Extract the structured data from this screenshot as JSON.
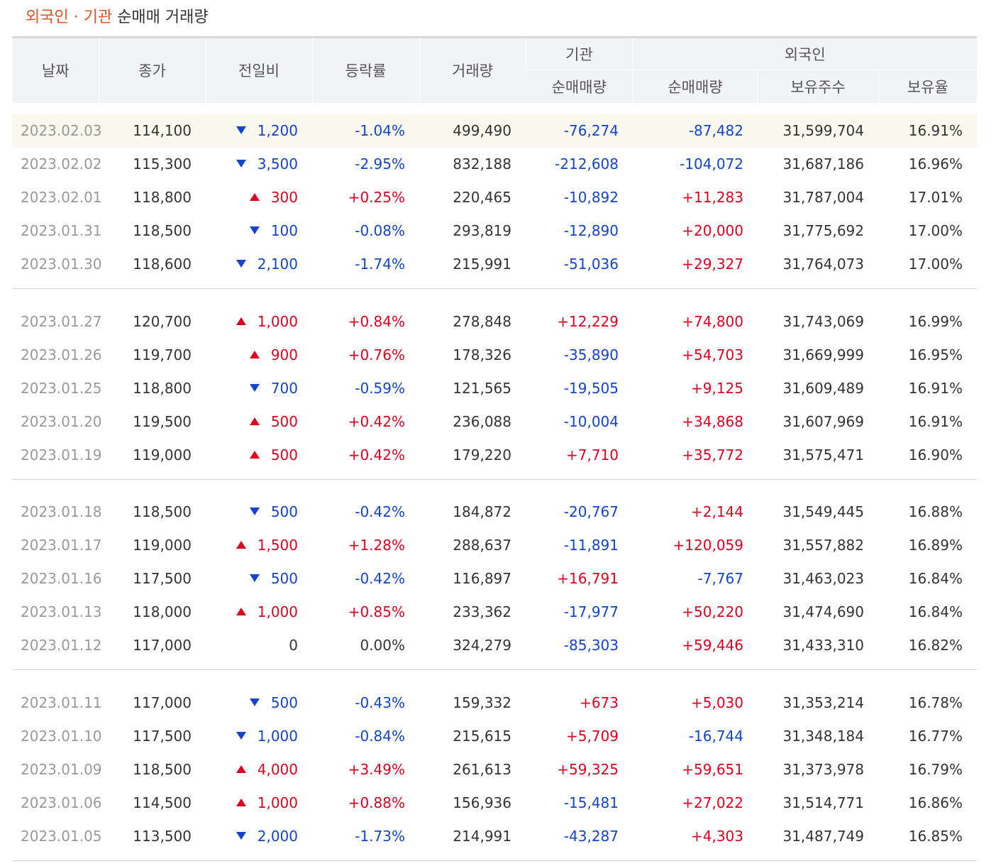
{
  "header": {
    "title_highlight": "외국인 · 기관",
    "title_rest": "순매매 거래량"
  },
  "columns": {
    "date": "날짜",
    "close": "종가",
    "change": "전일비",
    "rate": "등락률",
    "volume": "거래량",
    "inst_group": "기관",
    "foreign_group": "외국인",
    "inst_net": "순매매량",
    "foreign_net": "순매매량",
    "foreign_shares": "보유주수",
    "foreign_ratio": "보유율"
  },
  "colors": {
    "up": "#e0001f",
    "down": "#1244cc",
    "accent": "#e8521f"
  },
  "groups": [
    [
      {
        "date": "2023.02.03",
        "close": "114,100",
        "dir": "down",
        "change": "1,200",
        "rate": "-1.04%",
        "volume": "499,490",
        "inst": "-76,274",
        "foreign": "-87,482",
        "shares": "31,599,704",
        "ratio": "16.91%",
        "highlight": true
      },
      {
        "date": "2023.02.02",
        "close": "115,300",
        "dir": "down",
        "change": "3,500",
        "rate": "-2.95%",
        "volume": "832,188",
        "inst": "-212,608",
        "foreign": "-104,072",
        "shares": "31,687,186",
        "ratio": "16.96%"
      },
      {
        "date": "2023.02.01",
        "close": "118,800",
        "dir": "up",
        "change": "300",
        "rate": "+0.25%",
        "volume": "220,465",
        "inst": "-10,892",
        "foreign": "+11,283",
        "shares": "31,787,004",
        "ratio": "17.01%"
      },
      {
        "date": "2023.01.31",
        "close": "118,500",
        "dir": "down",
        "change": "100",
        "rate": "-0.08%",
        "volume": "293,819",
        "inst": "-12,890",
        "foreign": "+20,000",
        "shares": "31,775,692",
        "ratio": "17.00%"
      },
      {
        "date": "2023.01.30",
        "close": "118,600",
        "dir": "down",
        "change": "2,100",
        "rate": "-1.74%",
        "volume": "215,991",
        "inst": "-51,036",
        "foreign": "+29,327",
        "shares": "31,764,073",
        "ratio": "17.00%"
      }
    ],
    [
      {
        "date": "2023.01.27",
        "close": "120,700",
        "dir": "up",
        "change": "1,000",
        "rate": "+0.84%",
        "volume": "278,848",
        "inst": "+12,229",
        "foreign": "+74,800",
        "shares": "31,743,069",
        "ratio": "16.99%"
      },
      {
        "date": "2023.01.26",
        "close": "119,700",
        "dir": "up",
        "change": "900",
        "rate": "+0.76%",
        "volume": "178,326",
        "inst": "-35,890",
        "foreign": "+54,703",
        "shares": "31,669,999",
        "ratio": "16.95%"
      },
      {
        "date": "2023.01.25",
        "close": "118,800",
        "dir": "down",
        "change": "700",
        "rate": "-0.59%",
        "volume": "121,565",
        "inst": "-19,505",
        "foreign": "+9,125",
        "shares": "31,609,489",
        "ratio": "16.91%"
      },
      {
        "date": "2023.01.20",
        "close": "119,500",
        "dir": "up",
        "change": "500",
        "rate": "+0.42%",
        "volume": "236,088",
        "inst": "-10,004",
        "foreign": "+34,868",
        "shares": "31,607,969",
        "ratio": "16.91%"
      },
      {
        "date": "2023.01.19",
        "close": "119,000",
        "dir": "up",
        "change": "500",
        "rate": "+0.42%",
        "volume": "179,220",
        "inst": "+7,710",
        "foreign": "+35,772",
        "shares": "31,575,471",
        "ratio": "16.90%"
      }
    ],
    [
      {
        "date": "2023.01.18",
        "close": "118,500",
        "dir": "down",
        "change": "500",
        "rate": "-0.42%",
        "volume": "184,872",
        "inst": "-20,767",
        "foreign": "+2,144",
        "shares": "31,549,445",
        "ratio": "16.88%"
      },
      {
        "date": "2023.01.17",
        "close": "119,000",
        "dir": "up",
        "change": "1,500",
        "rate": "+1.28%",
        "volume": "288,637",
        "inst": "-11,891",
        "foreign": "+120,059",
        "shares": "31,557,882",
        "ratio": "16.89%"
      },
      {
        "date": "2023.01.16",
        "close": "117,500",
        "dir": "down",
        "change": "500",
        "rate": "-0.42%",
        "volume": "116,897",
        "inst": "+16,791",
        "foreign": "-7,767",
        "shares": "31,463,023",
        "ratio": "16.84%"
      },
      {
        "date": "2023.01.13",
        "close": "118,000",
        "dir": "up",
        "change": "1,000",
        "rate": "+0.85%",
        "volume": "233,362",
        "inst": "-17,977",
        "foreign": "+50,220",
        "shares": "31,474,690",
        "ratio": "16.84%"
      },
      {
        "date": "2023.01.12",
        "close": "117,000",
        "dir": "flat",
        "change": "0",
        "rate": "0.00%",
        "volume": "324,279",
        "inst": "-85,303",
        "foreign": "+59,446",
        "shares": "31,433,310",
        "ratio": "16.82%"
      }
    ],
    [
      {
        "date": "2023.01.11",
        "close": "117,000",
        "dir": "down",
        "change": "500",
        "rate": "-0.43%",
        "volume": "159,332",
        "inst": "+673",
        "foreign": "+5,030",
        "shares": "31,353,214",
        "ratio": "16.78%"
      },
      {
        "date": "2023.01.10",
        "close": "117,500",
        "dir": "down",
        "change": "1,000",
        "rate": "-0.84%",
        "volume": "215,615",
        "inst": "+5,709",
        "foreign": "-16,744",
        "shares": "31,348,184",
        "ratio": "16.77%"
      },
      {
        "date": "2023.01.09",
        "close": "118,500",
        "dir": "up",
        "change": "4,000",
        "rate": "+3.49%",
        "volume": "261,613",
        "inst": "+59,325",
        "foreign": "+59,651",
        "shares": "31,373,978",
        "ratio": "16.79%"
      },
      {
        "date": "2023.01.06",
        "close": "114,500",
        "dir": "up",
        "change": "1,000",
        "rate": "+0.88%",
        "volume": "156,936",
        "inst": "-15,481",
        "foreign": "+27,022",
        "shares": "31,514,771",
        "ratio": "16.86%"
      },
      {
        "date": "2023.01.05",
        "close": "113,500",
        "dir": "down",
        "change": "2,000",
        "rate": "-1.73%",
        "volume": "214,991",
        "inst": "-43,287",
        "foreign": "+4,303",
        "shares": "31,487,749",
        "ratio": "16.85%"
      }
    ]
  ]
}
